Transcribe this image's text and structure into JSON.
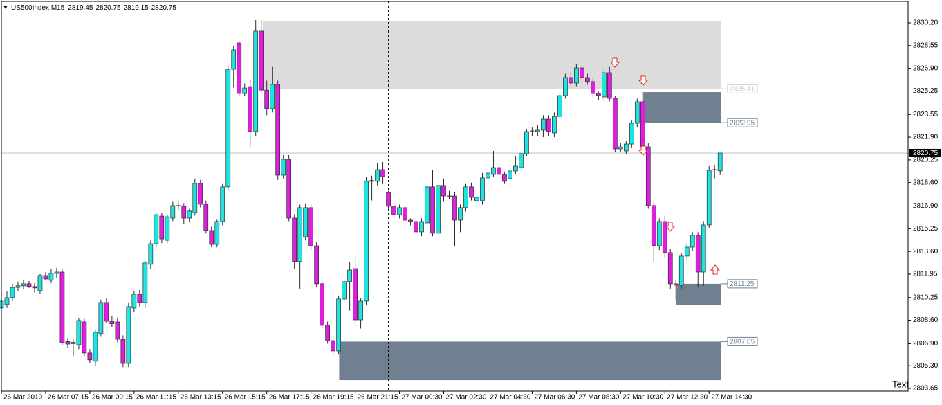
{
  "chart_data": {
    "type": "candlestick",
    "symbol": "US500Index,M15",
    "text_label": "Text",
    "up_color": "#1ee3e3",
    "down_color": "#e01ee0",
    "outline_color": "#2a2a2a",
    "xlim": [
      0,
      164
    ],
    "ylim": [
      2803.45,
      2831.76
    ],
    "xticks": [
      {
        "value": 0,
        "label": "26 Mar 2019"
      },
      {
        "value": 8,
        "label": "26 Mar 07:15"
      },
      {
        "value": 16,
        "label": "26 Mar 09:15"
      },
      {
        "value": 24,
        "label": "26 Mar 11:15"
      },
      {
        "value": 32,
        "label": "26 Mar 13:15"
      },
      {
        "value": 40,
        "label": "26 Mar 15:15"
      },
      {
        "value": 48,
        "label": "26 Mar 17:15"
      },
      {
        "value": 56,
        "label": "26 Mar 19:15"
      },
      {
        "value": 64,
        "label": "26 Mar 21:15"
      },
      {
        "value": 72,
        "label": "27 Mar 00:30"
      },
      {
        "value": 80,
        "label": "27 Mar 02:30"
      },
      {
        "value": 88,
        "label": "27 Mar 04:30"
      },
      {
        "value": 96,
        "label": "27 Mar 06:30"
      },
      {
        "value": 104,
        "label": "27 Mar 08:30"
      },
      {
        "value": 112,
        "label": "27 Mar 10:30"
      },
      {
        "value": 120,
        "label": "27 Mar 12:30"
      },
      {
        "value": 128,
        "label": "27 Mar 14:30"
      }
    ],
    "yticks": [
      {
        "value": 2830.2,
        "label": "2830.20"
      },
      {
        "value": 2828.55,
        "label": "2828.55"
      },
      {
        "value": 2826.9,
        "label": "2826.90"
      },
      {
        "value": 2825.25,
        "label": "2825.25"
      },
      {
        "value": 2823.55,
        "label": "2823.55"
      },
      {
        "value": 2821.9,
        "label": "2821.90"
      },
      {
        "value": 2820.25,
        "label": "2820.25"
      },
      {
        "value": 2818.6,
        "label": "2818.60"
      },
      {
        "value": 2816.9,
        "label": "2816.90"
      },
      {
        "value": 2815.25,
        "label": "2815.25"
      },
      {
        "value": 2813.6,
        "label": "2813.60"
      },
      {
        "value": 2811.95,
        "label": "2811.95"
      },
      {
        "value": 2810.25,
        "label": "2810.25"
      },
      {
        "value": 2808.6,
        "label": "2808.60"
      },
      {
        "value": 2806.9,
        "label": "2806.90"
      },
      {
        "value": 2805.3,
        "label": "2805.30"
      },
      {
        "value": 2803.65,
        "label": "2803.65"
      }
    ],
    "vline": 70,
    "zones": [
      {
        "x0": 47.25,
        "x1": 130.1,
        "high": 2830.35,
        "low": 2825.41,
        "color": "#dcdcdc",
        "label_at": "low",
        "label_color": "#c8c8c8"
      },
      {
        "x0": 116.1,
        "x1": 130.1,
        "high": 2825.17,
        "low": 2822.95,
        "color": "#708090",
        "label_at": "low",
        "label_color": "#708090"
      },
      {
        "x0": 122.1,
        "x1": 130.1,
        "high": 2811.25,
        "low": 2809.73,
        "color": "#708090",
        "label_at": "high",
        "label_color": "#708090"
      },
      {
        "x0": 61.1,
        "x1": 130.1,
        "high": 2807.05,
        "low": 2804.25,
        "color": "#708090",
        "label_at": "high",
        "label_color": "#708090"
      }
    ],
    "ohlc": [
      [
        2809.49,
        2810.45,
        2809.2,
        2809.99
      ],
      [
        2809.74,
        2810.74,
        2809.49,
        2810.24
      ],
      [
        2810.24,
        2811.25,
        2810.0,
        2810.99
      ],
      [
        2810.99,
        2811.4,
        2810.7,
        2811.1
      ],
      [
        2811.1,
        2811.5,
        2810.85,
        2811.25
      ],
      [
        2811.25,
        2811.45,
        2810.95,
        2811.05
      ],
      [
        2811.05,
        2811.3,
        2810.6,
        2810.95
      ],
      [
        2810.74,
        2811.95,
        2810.5,
        2811.85
      ],
      [
        2811.85,
        2812.1,
        2811.5,
        2811.6
      ],
      [
        2811.5,
        2812.3,
        2811.3,
        2812.0
      ],
      [
        2812.0,
        2812.4,
        2811.7,
        2812.1
      ],
      [
        2812.1,
        2812.35,
        2806.8,
        2806.97
      ],
      [
        2807.05,
        2807.3,
        2806.6,
        2806.87
      ],
      [
        2806.9,
        2807.2,
        2806.0,
        2807.0
      ],
      [
        2806.82,
        2808.75,
        2806.5,
        2808.58
      ],
      [
        2808.48,
        2808.7,
        2806.0,
        2806.22
      ],
      [
        2806.22,
        2806.5,
        2805.5,
        2805.72
      ],
      [
        2805.62,
        2807.9,
        2805.3,
        2807.73
      ],
      [
        2807.63,
        2810.1,
        2807.4,
        2809.89
      ],
      [
        2809.89,
        2810.2,
        2808.4,
        2808.53
      ],
      [
        2808.53,
        2808.9,
        2808.1,
        2808.35
      ],
      [
        2808.48,
        2808.8,
        2807.0,
        2807.22
      ],
      [
        2807.22,
        2807.5,
        2805.2,
        2805.46
      ],
      [
        2805.46,
        2809.9,
        2805.2,
        2809.59
      ],
      [
        2809.49,
        2810.7,
        2809.2,
        2810.49
      ],
      [
        2810.49,
        2810.8,
        2809.6,
        2809.89
      ],
      [
        2809.89,
        2812.9,
        2809.5,
        2812.76
      ],
      [
        2812.66,
        2814.4,
        2812.3,
        2814.16
      ],
      [
        2814.16,
        2816.4,
        2813.9,
        2816.27
      ],
      [
        2816.17,
        2816.4,
        2814.2,
        2814.51
      ],
      [
        2814.41,
        2816.3,
        2814.2,
        2816.12
      ],
      [
        2816.02,
        2817.2,
        2815.8,
        2816.93
      ],
      [
        2816.93,
        2817.2,
        2816.6,
        2816.88
      ],
      [
        2816.88,
        2817.1,
        2815.6,
        2816.02
      ],
      [
        2816.02,
        2816.7,
        2815.7,
        2816.53
      ],
      [
        2816.42,
        2818.9,
        2816.2,
        2818.54
      ],
      [
        2818.54,
        2818.8,
        2816.8,
        2817.03
      ],
      [
        2817.03,
        2817.3,
        2814.9,
        2815.12
      ],
      [
        2815.12,
        2815.4,
        2813.9,
        2814.11
      ],
      [
        2814.11,
        2815.9,
        2813.9,
        2815.77
      ],
      [
        2815.77,
        2818.5,
        2815.5,
        2818.29
      ],
      [
        2818.29,
        2827.1,
        2818.0,
        2826.83
      ],
      [
        2826.83,
        2828.5,
        2825.5,
        2828.24
      ],
      [
        2828.74,
        2828.9,
        2824.9,
        2825.07
      ],
      [
        2825.07,
        2825.8,
        2824.9,
        2825.47
      ],
      [
        2825.57,
        2826.1,
        2821.2,
        2822.31
      ],
      [
        2822.31,
        2830.4,
        2822.0,
        2829.6
      ],
      [
        2829.6,
        2830.4,
        2825.1,
        2825.32
      ],
      [
        2825.32,
        2826.0,
        2823.5,
        2823.97
      ],
      [
        2823.97,
        2827.0,
        2823.7,
        2825.73
      ],
      [
        2825.73,
        2826.0,
        2818.8,
        2819.14
      ],
      [
        2819.14,
        2820.6,
        2818.9,
        2820.3
      ],
      [
        2820.3,
        2820.6,
        2815.8,
        2816.02
      ],
      [
        2816.02,
        2816.3,
        2812.3,
        2812.86
      ],
      [
        2812.86,
        2817.0,
        2810.9,
        2816.78
      ],
      [
        2814.66,
        2817.1,
        2814.4,
        2816.78
      ],
      [
        2816.78,
        2817.0,
        2813.7,
        2814.01
      ],
      [
        2814.01,
        2814.3,
        2811.0,
        2811.25
      ],
      [
        2811.25,
        2811.5,
        2808.0,
        2808.23
      ],
      [
        2808.23,
        2808.5,
        2806.9,
        2807.12
      ],
      [
        2807.12,
        2807.4,
        2806.1,
        2806.37
      ],
      [
        2806.37,
        2810.4,
        2806.1,
        2810.14
      ],
      [
        2810.14,
        2811.6,
        2809.9,
        2811.4
      ],
      [
        2811.4,
        2812.8,
        2809.3,
        2812.25
      ],
      [
        2812.35,
        2813.2,
        2808.1,
        2808.63
      ],
      [
        2808.63,
        2810.2,
        2808.0,
        2809.99
      ],
      [
        2809.99,
        2819.0,
        2809.7,
        2818.69
      ],
      [
        2818.69,
        2819.1,
        2817.3,
        2818.75
      ],
      [
        2818.69,
        2820.0,
        2818.4,
        2819.54
      ],
      [
        2819.54,
        2820.1,
        2818.5,
        2819.04
      ],
      [
        2817.88,
        2818.0,
        2816.6,
        2816.88
      ],
      [
        2816.88,
        2817.1,
        2816.0,
        2816.27
      ],
      [
        2816.27,
        2817.0,
        2816.0,
        2816.78
      ],
      [
        2816.78,
        2817.0,
        2815.6,
        2815.87
      ],
      [
        2815.87,
        2816.0,
        2815.5,
        2815.77
      ],
      [
        2815.77,
        2816.0,
        2814.7,
        2815.02
      ],
      [
        2815.02,
        2816.0,
        2814.7,
        2815.77
      ],
      [
        2815.67,
        2818.6,
        2814.8,
        2818.29
      ],
      [
        2818.29,
        2819.5,
        2814.7,
        2814.92
      ],
      [
        2814.92,
        2818.8,
        2814.6,
        2818.39
      ],
      [
        2818.39,
        2818.9,
        2817.2,
        2817.63
      ],
      [
        2817.63,
        2818.0,
        2817.4,
        2817.55
      ],
      [
        2817.63,
        2817.9,
        2814.0,
        2815.87
      ],
      [
        2815.87,
        2817.0,
        2815.0,
        2816.78
      ],
      [
        2816.78,
        2818.5,
        2816.5,
        2818.29
      ],
      [
        2818.29,
        2818.6,
        2817.3,
        2817.53
      ],
      [
        2817.28,
        2817.8,
        2817.0,
        2817.53
      ],
      [
        2817.28,
        2819.3,
        2817.0,
        2818.94
      ],
      [
        2818.94,
        2819.7,
        2818.7,
        2819.29
      ],
      [
        2819.19,
        2820.9,
        2819.0,
        2819.69
      ],
      [
        2819.69,
        2820.0,
        2818.9,
        2819.19
      ],
      [
        2819.19,
        2819.4,
        2818.5,
        2818.69
      ],
      [
        2818.89,
        2819.9,
        2818.6,
        2819.44
      ],
      [
        2819.44,
        2820.5,
        2819.2,
        2819.79
      ],
      [
        2819.69,
        2821.0,
        2819.5,
        2820.7
      ],
      [
        2820.7,
        2822.5,
        2820.5,
        2822.31
      ],
      [
        2822.31,
        2822.6,
        2822.0,
        2822.35
      ],
      [
        2822.31,
        2822.8,
        2822.0,
        2822.41
      ],
      [
        2822.41,
        2823.5,
        2821.9,
        2823.21
      ],
      [
        2823.21,
        2823.5,
        2822.0,
        2822.31
      ],
      [
        2822.21,
        2823.7,
        2821.9,
        2823.41
      ],
      [
        2823.41,
        2825.1,
        2823.2,
        2824.92
      ],
      [
        2824.92,
        2826.5,
        2824.7,
        2826.23
      ],
      [
        2826.23,
        2826.6,
        2825.6,
        2825.83
      ],
      [
        2825.83,
        2827.2,
        2825.6,
        2826.93
      ],
      [
        2826.93,
        2827.1,
        2826.0,
        2826.23
      ],
      [
        2826.23,
        2826.5,
        2825.7,
        2825.93
      ],
      [
        2825.93,
        2826.2,
        2824.8,
        2825.07
      ],
      [
        2825.07,
        2825.2,
        2824.6,
        2824.92
      ],
      [
        2824.82,
        2826.9,
        2824.5,
        2826.58
      ],
      [
        2826.58,
        2827.0,
        2824.5,
        2824.72
      ],
      [
        2824.72,
        2824.9,
        2820.8,
        2821.05
      ],
      [
        2821.05,
        2821.5,
        2820.8,
        2821.2
      ],
      [
        2820.9,
        2821.6,
        2820.7,
        2821.4
      ],
      [
        2821.4,
        2823.1,
        2821.1,
        2822.91
      ],
      [
        2822.91,
        2824.7,
        2822.6,
        2824.47
      ],
      [
        2824.47,
        2825.2,
        2820.9,
        2821.2
      ],
      [
        2821.2,
        2821.5,
        2816.7,
        2816.93
      ],
      [
        2816.93,
        2817.2,
        2812.8,
        2814.01
      ],
      [
        2814.01,
        2816.0,
        2813.7,
        2815.77
      ],
      [
        2815.77,
        2816.2,
        2813.2,
        2813.51
      ],
      [
        2813.51,
        2813.8,
        2810.9,
        2811.25
      ],
      [
        2811.25,
        2811.5,
        2810.0,
        2811.15
      ],
      [
        2811.15,
        2813.5,
        2810.9,
        2813.26
      ],
      [
        2813.26,
        2814.2,
        2813.0,
        2813.91
      ],
      [
        2813.91,
        2815.0,
        2813.6,
        2814.77
      ],
      [
        2814.77,
        2815.0,
        2811.0,
        2812.1
      ],
      [
        2812.1,
        2815.8,
        2811.1,
        2815.52
      ],
      [
        2815.52,
        2819.8,
        2815.3,
        2819.49
      ],
      [
        2819.49,
        2819.9,
        2818.9,
        2819.54
      ],
      [
        2819.45,
        2820.75,
        2819.15,
        2820.75
      ]
    ]
  }
}
